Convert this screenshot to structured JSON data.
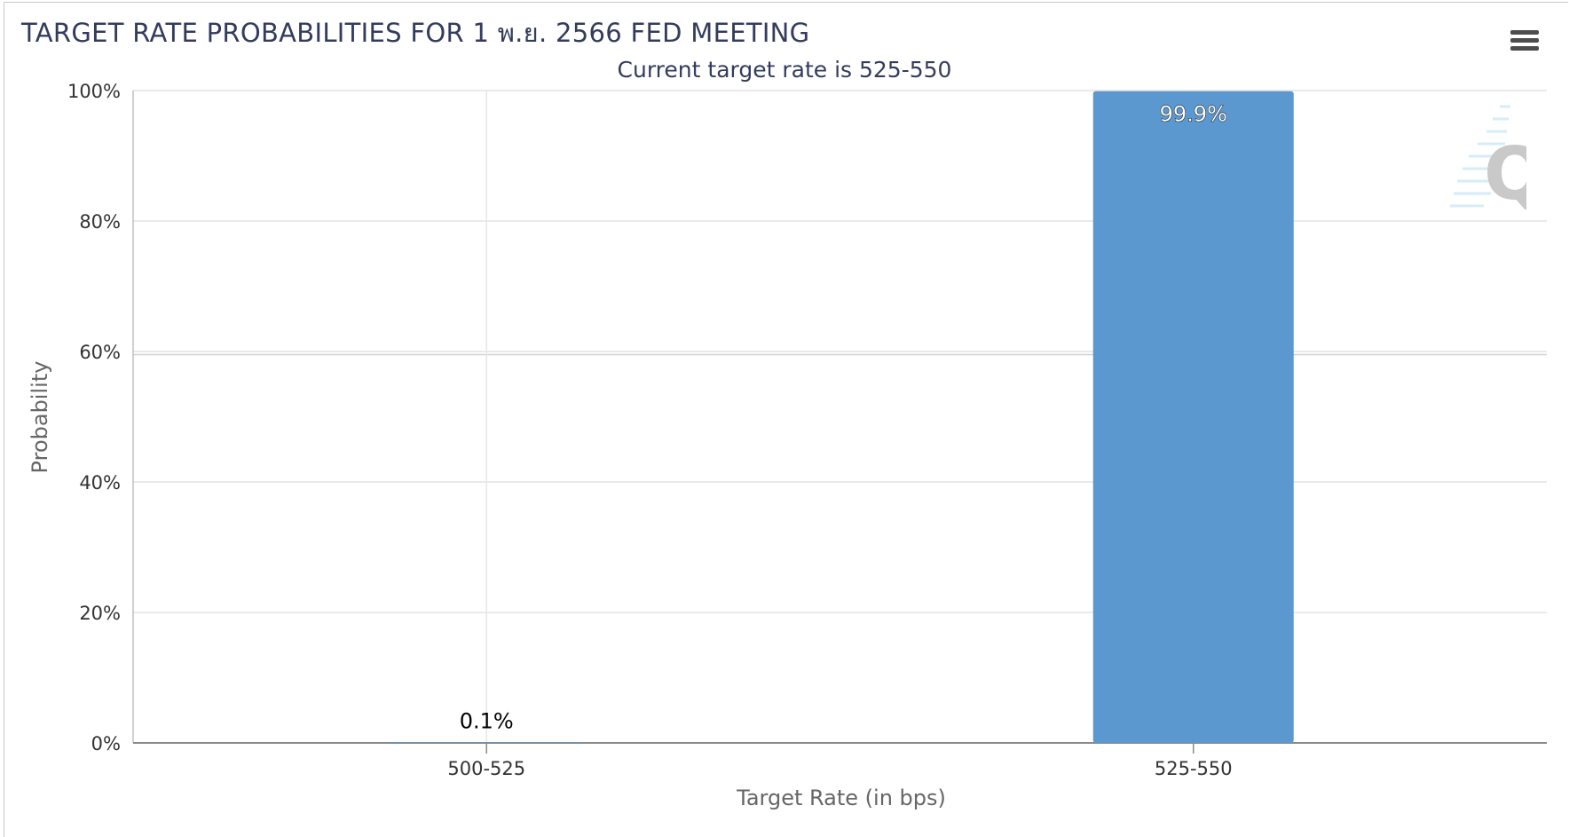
{
  "chart_data": {
    "type": "bar",
    "title": "TARGET RATE PROBABILITIES FOR 1 พ.ย. 2566 FED MEETING",
    "subtitle": "Current target rate is 525-550",
    "xlabel": "Target Rate (in bps)",
    "ylabel": "Probability",
    "categories": [
      "500-525",
      "525-550"
    ],
    "values": [
      0.1,
      99.9
    ],
    "data_labels": [
      "0.1%",
      "99.9%"
    ],
    "yticks": [
      "0%",
      "20%",
      "40%",
      "60%",
      "80%",
      "100%"
    ],
    "ylim": [
      0,
      100
    ],
    "grid": true,
    "bar_color": "#5b98cf"
  },
  "toolbar": {
    "menu_icon": "hamburger-menu-icon"
  },
  "logo": {
    "icon": "q-logo-icon"
  }
}
